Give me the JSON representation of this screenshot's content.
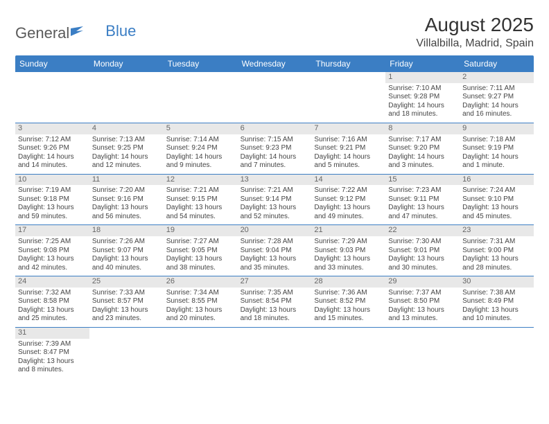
{
  "logo": {
    "text1": "General",
    "text2": "Blue"
  },
  "title": "August 2025",
  "location": "Villalbilla, Madrid, Spain",
  "colors": {
    "header_bg": "#3b7ec4",
    "header_fg": "#ffffff",
    "daynum_bg": "#e8e8e8",
    "text": "#444444",
    "rule": "#3b7ec4"
  },
  "weekdays": [
    "Sunday",
    "Monday",
    "Tuesday",
    "Wednesday",
    "Thursday",
    "Friday",
    "Saturday"
  ],
  "grid": {
    "rows": 6,
    "cols": 7,
    "cells": [
      null,
      null,
      null,
      null,
      null,
      {
        "n": "1",
        "sr": "7:10 AM",
        "ss": "9:28 PM",
        "dl": "14 hours and 18 minutes."
      },
      {
        "n": "2",
        "sr": "7:11 AM",
        "ss": "9:27 PM",
        "dl": "14 hours and 16 minutes."
      },
      {
        "n": "3",
        "sr": "7:12 AM",
        "ss": "9:26 PM",
        "dl": "14 hours and 14 minutes."
      },
      {
        "n": "4",
        "sr": "7:13 AM",
        "ss": "9:25 PM",
        "dl": "14 hours and 12 minutes."
      },
      {
        "n": "5",
        "sr": "7:14 AM",
        "ss": "9:24 PM",
        "dl": "14 hours and 9 minutes."
      },
      {
        "n": "6",
        "sr": "7:15 AM",
        "ss": "9:23 PM",
        "dl": "14 hours and 7 minutes."
      },
      {
        "n": "7",
        "sr": "7:16 AM",
        "ss": "9:21 PM",
        "dl": "14 hours and 5 minutes."
      },
      {
        "n": "8",
        "sr": "7:17 AM",
        "ss": "9:20 PM",
        "dl": "14 hours and 3 minutes."
      },
      {
        "n": "9",
        "sr": "7:18 AM",
        "ss": "9:19 PM",
        "dl": "14 hours and 1 minute."
      },
      {
        "n": "10",
        "sr": "7:19 AM",
        "ss": "9:18 PM",
        "dl": "13 hours and 59 minutes."
      },
      {
        "n": "11",
        "sr": "7:20 AM",
        "ss": "9:16 PM",
        "dl": "13 hours and 56 minutes."
      },
      {
        "n": "12",
        "sr": "7:21 AM",
        "ss": "9:15 PM",
        "dl": "13 hours and 54 minutes."
      },
      {
        "n": "13",
        "sr": "7:21 AM",
        "ss": "9:14 PM",
        "dl": "13 hours and 52 minutes."
      },
      {
        "n": "14",
        "sr": "7:22 AM",
        "ss": "9:12 PM",
        "dl": "13 hours and 49 minutes."
      },
      {
        "n": "15",
        "sr": "7:23 AM",
        "ss": "9:11 PM",
        "dl": "13 hours and 47 minutes."
      },
      {
        "n": "16",
        "sr": "7:24 AM",
        "ss": "9:10 PM",
        "dl": "13 hours and 45 minutes."
      },
      {
        "n": "17",
        "sr": "7:25 AM",
        "ss": "9:08 PM",
        "dl": "13 hours and 42 minutes."
      },
      {
        "n": "18",
        "sr": "7:26 AM",
        "ss": "9:07 PM",
        "dl": "13 hours and 40 minutes."
      },
      {
        "n": "19",
        "sr": "7:27 AM",
        "ss": "9:05 PM",
        "dl": "13 hours and 38 minutes."
      },
      {
        "n": "20",
        "sr": "7:28 AM",
        "ss": "9:04 PM",
        "dl": "13 hours and 35 minutes."
      },
      {
        "n": "21",
        "sr": "7:29 AM",
        "ss": "9:03 PM",
        "dl": "13 hours and 33 minutes."
      },
      {
        "n": "22",
        "sr": "7:30 AM",
        "ss": "9:01 PM",
        "dl": "13 hours and 30 minutes."
      },
      {
        "n": "23",
        "sr": "7:31 AM",
        "ss": "9:00 PM",
        "dl": "13 hours and 28 minutes."
      },
      {
        "n": "24",
        "sr": "7:32 AM",
        "ss": "8:58 PM",
        "dl": "13 hours and 25 minutes."
      },
      {
        "n": "25",
        "sr": "7:33 AM",
        "ss": "8:57 PM",
        "dl": "13 hours and 23 minutes."
      },
      {
        "n": "26",
        "sr": "7:34 AM",
        "ss": "8:55 PM",
        "dl": "13 hours and 20 minutes."
      },
      {
        "n": "27",
        "sr": "7:35 AM",
        "ss": "8:54 PM",
        "dl": "13 hours and 18 minutes."
      },
      {
        "n": "28",
        "sr": "7:36 AM",
        "ss": "8:52 PM",
        "dl": "13 hours and 15 minutes."
      },
      {
        "n": "29",
        "sr": "7:37 AM",
        "ss": "8:50 PM",
        "dl": "13 hours and 13 minutes."
      },
      {
        "n": "30",
        "sr": "7:38 AM",
        "ss": "8:49 PM",
        "dl": "13 hours and 10 minutes."
      },
      {
        "n": "31",
        "sr": "7:39 AM",
        "ss": "8:47 PM",
        "dl": "13 hours and 8 minutes."
      },
      null,
      null,
      null,
      null,
      null,
      null
    ]
  },
  "labels": {
    "sunrise": "Sunrise:",
    "sunset": "Sunset:",
    "daylight": "Daylight:"
  }
}
